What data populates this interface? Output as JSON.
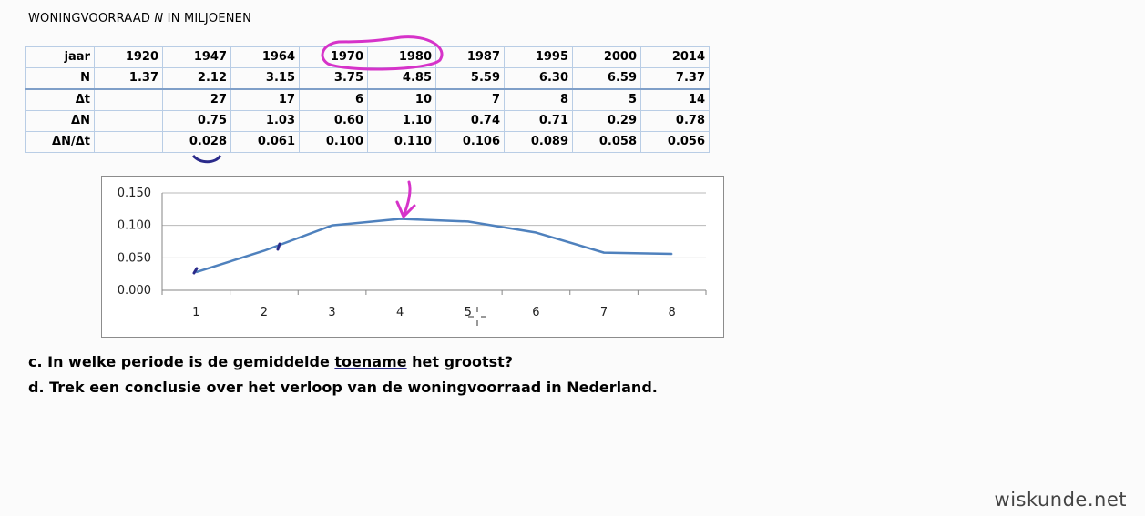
{
  "heading": {
    "prefix": "WONINGVOORRAAD ",
    "var": "N",
    "suffix": "  IN MILJOENEN"
  },
  "table": {
    "rows": [
      {
        "label": "jaar",
        "cells": [
          "1920",
          "1947",
          "1964",
          "1970",
          "1980",
          "1987",
          "1995",
          "2000",
          "2014"
        ]
      },
      {
        "label": "N",
        "cells": [
          "1.37",
          "2.12",
          "3.15",
          "3.75",
          "4.85",
          "5.59",
          "6.30",
          "6.59",
          "7.37"
        ]
      },
      {
        "label": "Δt",
        "cells": [
          "",
          "27",
          "17",
          "6",
          "10",
          "7",
          "8",
          "5",
          "14"
        ]
      },
      {
        "label": "ΔN",
        "cells": [
          "",
          "0.75",
          "1.03",
          "0.60",
          "1.10",
          "0.74",
          "0.71",
          "0.29",
          "0.78"
        ]
      },
      {
        "label": "ΔN/Δt",
        "cells": [
          "",
          "0.028",
          "0.061",
          "0.100",
          "0.110",
          "0.106",
          "0.089",
          "0.058",
          "0.056"
        ]
      }
    ]
  },
  "chart_data": {
    "type": "line",
    "categories": [
      "1",
      "2",
      "3",
      "4",
      "5",
      "6",
      "7",
      "8"
    ],
    "values": [
      0.028,
      0.061,
      0.1,
      0.11,
      0.106,
      0.089,
      0.058,
      0.056
    ],
    "ylim": [
      0,
      0.15
    ],
    "yticks": [
      "0.150",
      "0.100",
      "0.050",
      "0.000"
    ],
    "ytick_values": [
      0.15,
      0.1,
      0.05,
      0.0
    ],
    "grid": true,
    "line_color": "#4f81bd"
  },
  "questions": {
    "c_before": "c. In welke periode is de gemiddelde ",
    "c_underlined": "toename",
    "c_after": " het grootst?",
    "d": "d. Trek een conclusie over het verloop van de woningvoorraad in Nederland."
  },
  "brand": "wiskunde.net",
  "colors": {
    "annotation_magenta": "#d633c9",
    "annotation_navy": "#2a2a8a",
    "table_border": "#b9cde5"
  }
}
